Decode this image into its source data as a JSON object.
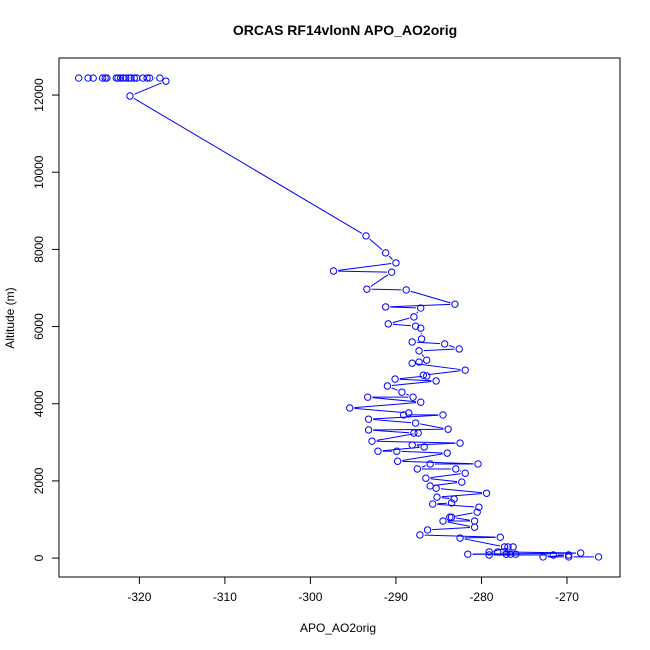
{
  "chart_data": {
    "type": "line",
    "title": "ORCAS RF14vlonN APO_AO2orig",
    "xlabel": "APO_AO2orig",
    "ylabel": "Altitude (m)",
    "xlim": [
      -329.4,
      -263.8
    ],
    "ylim": [
      -490,
      12960
    ],
    "xticks": [
      -320,
      -310,
      -300,
      -290,
      -280,
      -270
    ],
    "yticks": [
      0,
      2000,
      4000,
      6000,
      8000,
      10000,
      12000
    ],
    "grid": false,
    "markers": "open-circle",
    "color": "#0000ff",
    "series": [
      {
        "points": [
          [
            -327.1,
            12440
          ],
          [
            -326.0,
            12440
          ],
          [
            -325.4,
            12440
          ],
          [
            -324.3,
            12440
          ],
          [
            -324.0,
            12440
          ],
          [
            -323.8,
            12440
          ],
          [
            -322.7,
            12440
          ],
          [
            -322.5,
            12440
          ],
          [
            -322.2,
            12440
          ],
          [
            -321.9,
            12440
          ],
          [
            -321.6,
            12440
          ],
          [
            -321.2,
            12440
          ],
          [
            -321.0,
            12440
          ],
          [
            -320.6,
            12440
          ],
          [
            -320.3,
            12440
          ],
          [
            -319.6,
            12440
          ],
          [
            -319.1,
            12440
          ],
          [
            -318.8,
            12440
          ],
          [
            -317.6,
            12440
          ],
          [
            -316.9,
            12360
          ],
          [
            -321.1,
            11975
          ],
          [
            -293.5,
            8350
          ],
          [
            -291.2,
            7910
          ],
          [
            -290.0,
            7650
          ],
          [
            -297.3,
            7440
          ],
          [
            -290.5,
            7410
          ],
          [
            -293.4,
            6970
          ],
          [
            -288.8,
            6950
          ],
          [
            -283.1,
            6580
          ],
          [
            -291.2,
            6510
          ],
          [
            -287.1,
            6480
          ],
          [
            -287.9,
            6250
          ],
          [
            -290.9,
            6070
          ],
          [
            -287.7,
            6010
          ],
          [
            -287.1,
            5960
          ],
          [
            -287.0,
            5680
          ],
          [
            -288.1,
            5600
          ],
          [
            -284.3,
            5550
          ],
          [
            -282.6,
            5420
          ],
          [
            -287.3,
            5370
          ],
          [
            -286.4,
            5130
          ],
          [
            -287.3,
            5080
          ],
          [
            -288.1,
            5050
          ],
          [
            -281.9,
            4870
          ],
          [
            -286.8,
            4740
          ],
          [
            -286.4,
            4720
          ],
          [
            -290.1,
            4640
          ],
          [
            -285.3,
            4590
          ],
          [
            -291.0,
            4460
          ],
          [
            -289.3,
            4300
          ],
          [
            -288.0,
            4170
          ],
          [
            -293.3,
            4170
          ],
          [
            -287.1,
            4040
          ],
          [
            -295.4,
            3890
          ],
          [
            -288.5,
            3760
          ],
          [
            -289.1,
            3710
          ],
          [
            -284.5,
            3710
          ],
          [
            -293.2,
            3600
          ],
          [
            -287.7,
            3500
          ],
          [
            -283.9,
            3340
          ],
          [
            -293.2,
            3320
          ],
          [
            -287.9,
            3240
          ],
          [
            -287.4,
            3240
          ],
          [
            -292.8,
            3030
          ],
          [
            -282.5,
            2980
          ],
          [
            -288.1,
            2930
          ],
          [
            -286.7,
            2880
          ],
          [
            -292.1,
            2770
          ],
          [
            -289.9,
            2770
          ],
          [
            -284.0,
            2720
          ],
          [
            -289.8,
            2510
          ],
          [
            -280.4,
            2440
          ],
          [
            -286.0,
            2440
          ],
          [
            -287.5,
            2310
          ],
          [
            -283.0,
            2310
          ],
          [
            -281.9,
            2200
          ],
          [
            -286.5,
            2070
          ],
          [
            -282.3,
            1970
          ],
          [
            -286.0,
            1870
          ],
          [
            -285.3,
            1810
          ],
          [
            -279.4,
            1680
          ],
          [
            -285.2,
            1580
          ],
          [
            -283.2,
            1530
          ],
          [
            -283.5,
            1430
          ],
          [
            -285.7,
            1400
          ],
          [
            -280.3,
            1320
          ],
          [
            -280.5,
            1190
          ],
          [
            -283.7,
            1060
          ],
          [
            -283.5,
            1060
          ],
          [
            -280.8,
            960
          ],
          [
            -284.5,
            960
          ],
          [
            -280.8,
            800
          ],
          [
            -286.3,
            730
          ],
          [
            -287.2,
            600
          ],
          [
            -277.8,
            540
          ],
          [
            -282.5,
            520
          ],
          [
            -277.3,
            290
          ],
          [
            -276.9,
            290
          ],
          [
            -276.3,
            290
          ],
          [
            -279.1,
            160
          ],
          [
            -278.1,
            160
          ],
          [
            -268.4,
            130
          ],
          [
            -281.6,
            100
          ],
          [
            -277.1,
            100
          ],
          [
            -276.6,
            100
          ],
          [
            -276.0,
            100
          ],
          [
            -279.1,
            80
          ],
          [
            -271.6,
            80
          ],
          [
            -269.8,
            80
          ],
          [
            -272.8,
            30
          ],
          [
            -269.8,
            30
          ],
          [
            -266.3,
            30
          ]
        ]
      }
    ]
  }
}
